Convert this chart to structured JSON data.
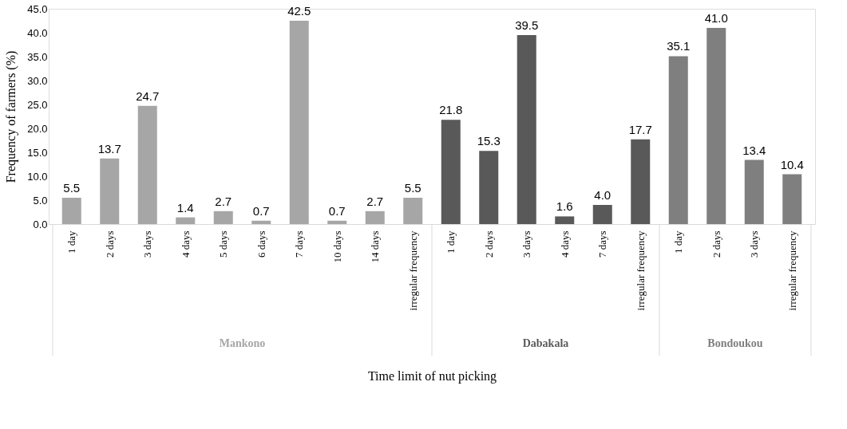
{
  "chart_data": {
    "type": "bar",
    "xlabel": "Time limit of nut picking",
    "ylabel": "Frequency of farmers (%)",
    "categories": [
      "1 day",
      "2 days",
      "3 days",
      "4 days",
      "5 days",
      "6 days",
      "7 days",
      "10 days",
      "14 days",
      "irregular frequency",
      "1 day",
      "2 days",
      "3 days",
      "4 days",
      "7 days",
      "irregular frequency",
      "1 day",
      "2 days",
      "3 days",
      "irregular frequency"
    ],
    "series": [
      {
        "name": "Mankono",
        "color": "#a6a6a6",
        "values": [
          5.5,
          13.7,
          24.7,
          1.4,
          2.7,
          0.7,
          42.5,
          0.7,
          2.7,
          5.5,
          null,
          null,
          null,
          null,
          null,
          null,
          null,
          null,
          null,
          null
        ],
        "value_labels": [
          "5.5",
          "13.7",
          "24.7",
          "1.4",
          "2.7",
          "0.7",
          "42.5",
          "0.7",
          "2.7",
          "5.5",
          null,
          null,
          null,
          null,
          null,
          null,
          null,
          null,
          null,
          null
        ]
      },
      {
        "name": "Dabakala",
        "color": "#595959",
        "values": [
          null,
          null,
          null,
          null,
          null,
          null,
          null,
          null,
          null,
          null,
          21.8,
          15.3,
          39.5,
          1.6,
          4.0,
          17.7,
          null,
          null,
          null,
          null
        ],
        "value_labels": [
          null,
          null,
          null,
          null,
          null,
          null,
          null,
          null,
          null,
          null,
          "21.8",
          "15.3",
          "39.5",
          "1.6",
          "4.0",
          "17.7",
          null,
          null,
          null,
          null
        ]
      },
      {
        "name": "Bondoukou",
        "color": "#7f7f7f",
        "values": [
          null,
          null,
          null,
          null,
          null,
          null,
          null,
          null,
          null,
          null,
          null,
          null,
          null,
          null,
          null,
          null,
          35.1,
          41.0,
          13.4,
          10.4
        ],
        "value_labels": [
          null,
          null,
          null,
          null,
          null,
          null,
          null,
          null,
          null,
          null,
          null,
          null,
          null,
          null,
          null,
          null,
          "35.1",
          "41.0",
          "13.4",
          "10.4"
        ]
      }
    ],
    "ylim": [
      0,
      45
    ],
    "yticks": [
      {
        "value": 0,
        "label": "0.0"
      },
      {
        "value": 5,
        "label": "5.0"
      },
      {
        "value": 10,
        "label": "10.0"
      },
      {
        "value": 15,
        "label": "15.0"
      },
      {
        "value": 20,
        "label": "20.0"
      },
      {
        "value": 25,
        "label": "25.0"
      },
      {
        "value": 30,
        "label": "30.0"
      },
      {
        "value": 35,
        "label": "35.0"
      },
      {
        "value": 40,
        "label": "40.0"
      },
      {
        "value": 45,
        "label": "45.0"
      }
    ],
    "grid": false,
    "legend": false
  }
}
